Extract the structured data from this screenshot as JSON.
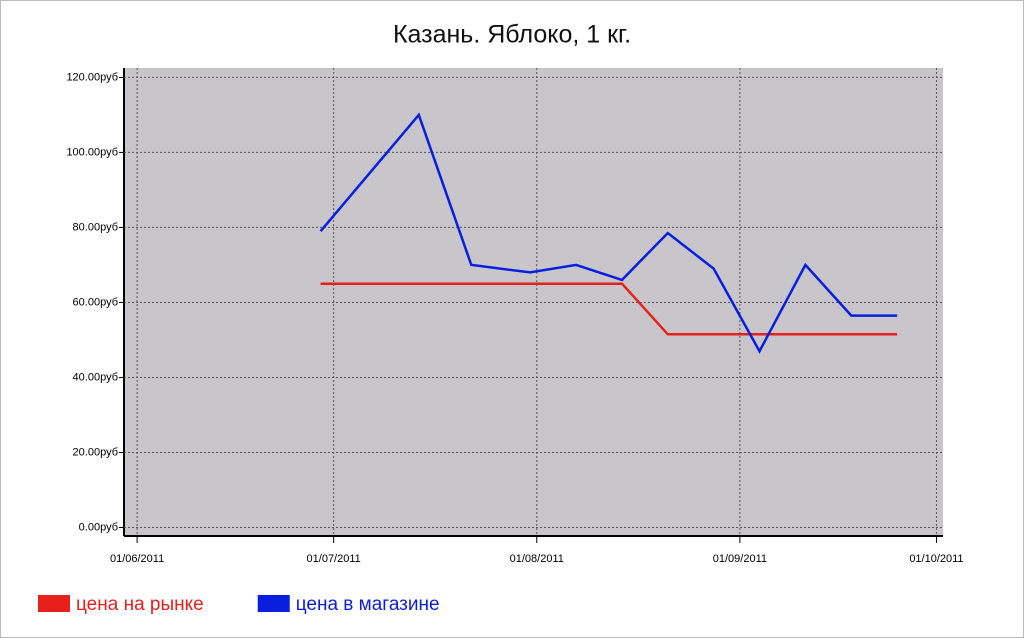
{
  "chart_data": {
    "type": "line",
    "title": "Казань. Яблоко, 1 кг.",
    "x": [
      "29/06/2011",
      "14/07/2011",
      "22/07/2011",
      "31/07/2011",
      "07/08/2011",
      "14/08/2011",
      "21/08/2011",
      "28/08/2011",
      "04/09/2011",
      "11/09/2011",
      "18/09/2011",
      "25/09/2011"
    ],
    "series": [
      {
        "name": "цена на рынке",
        "color": "#e8201c",
        "values": [
          65,
          65,
          65,
          65,
          65,
          65,
          51.5,
          51.5,
          51.5,
          51.5,
          51.5,
          51.5
        ]
      },
      {
        "name": "цена в магазине",
        "color": "#0a1ee0",
        "values": [
          79,
          110,
          70,
          68,
          70,
          66,
          78.5,
          69,
          47,
          70,
          56.5,
          56.5
        ]
      }
    ],
    "xlim": [
      "30/05/2011",
      "02/10/2011"
    ],
    "xticks": [
      "01/06/2011",
      "01/07/2011",
      "01/08/2011",
      "01/09/2011",
      "01/10/2011"
    ],
    "ylim": [
      -2,
      122.5
    ],
    "yticks": [
      {
        "value": 0,
        "label": "0.00руб"
      },
      {
        "value": 20,
        "label": "20.00руб"
      },
      {
        "value": 40,
        "label": "40.00руб"
      },
      {
        "value": 60,
        "label": "60.00руб"
      },
      {
        "value": 80,
        "label": "80.00руб"
      },
      {
        "value": 100,
        "label": "100.00руб"
      },
      {
        "value": 120,
        "label": "120.00руб"
      }
    ],
    "grid": true,
    "legend": "bottom-left"
  }
}
